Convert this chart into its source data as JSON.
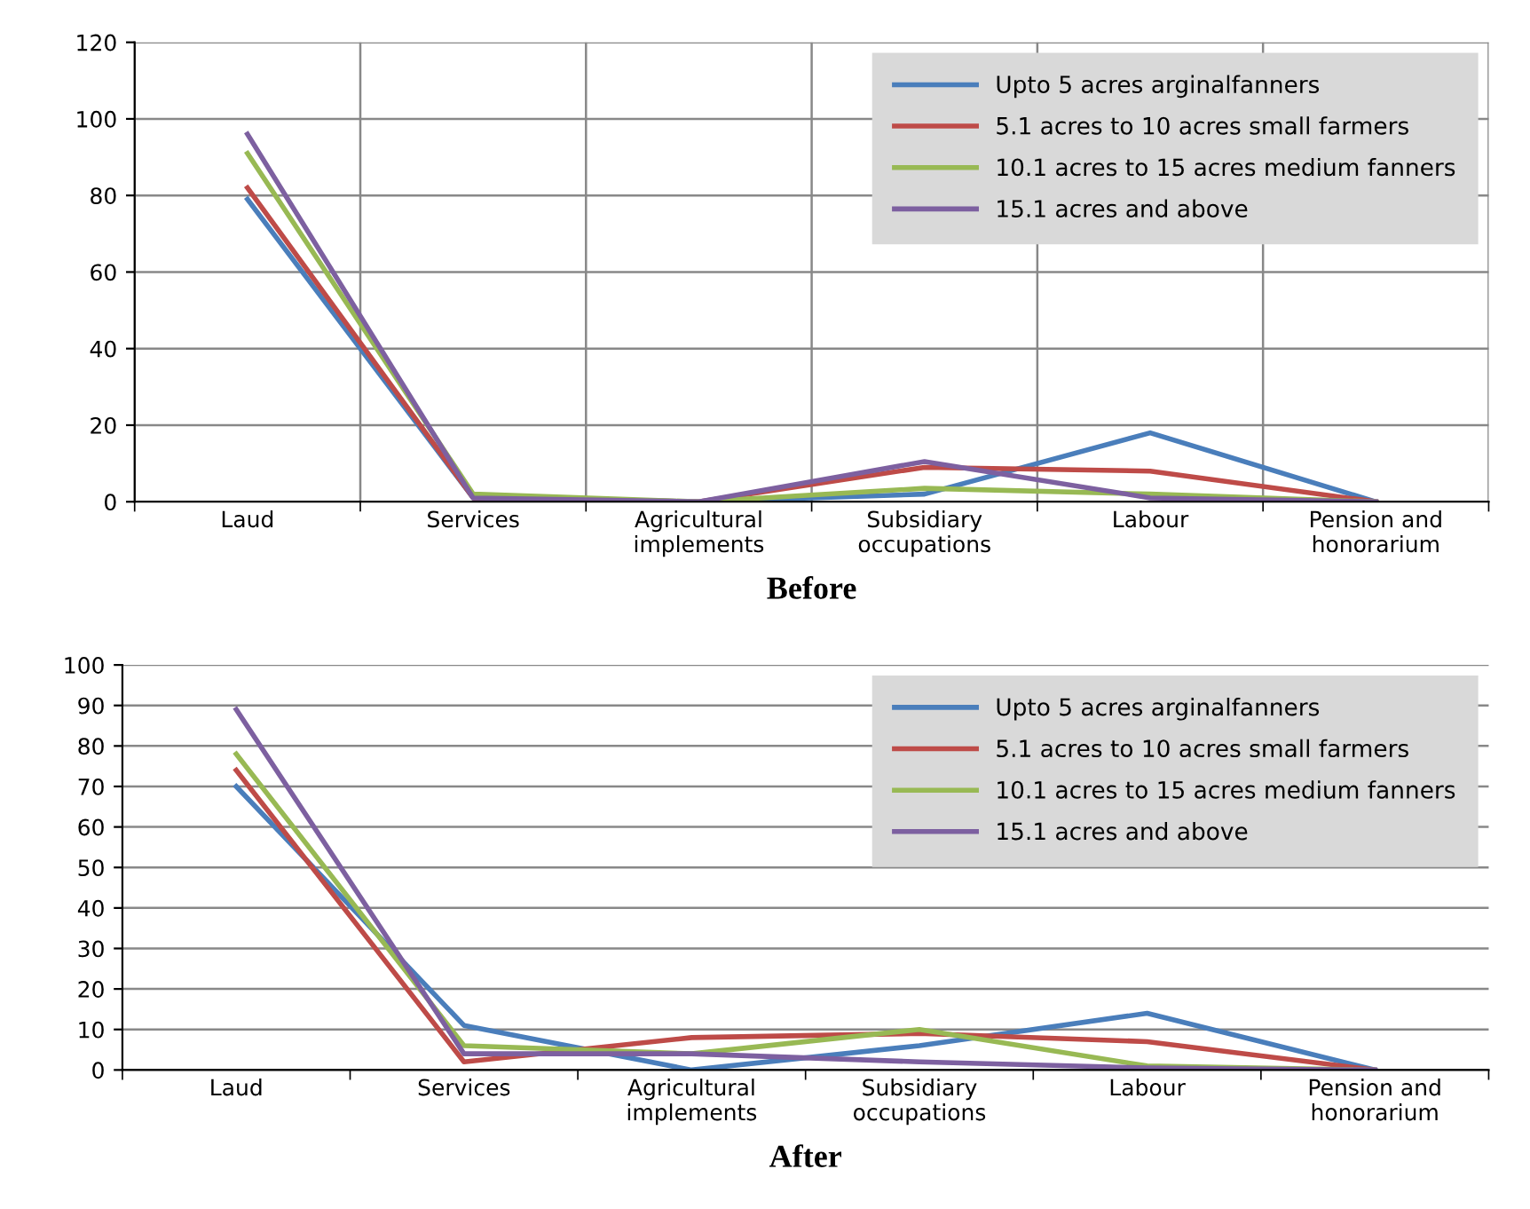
{
  "chart_data": [
    {
      "type": "line",
      "xlabel": "Before",
      "categories": [
        "Laud",
        "Services",
        "Agricultural\nimplements",
        "Subsidiary\noccupations",
        "Labour",
        "Pension and\nhonorarium"
      ],
      "series": [
        {
          "name": "Upto 5 acres arginalfanners",
          "color": "#4a7ebb",
          "values": [
            79,
            1,
            0,
            2,
            18,
            0
          ]
        },
        {
          "name": "5.1 acres to 10 acres small farmers",
          "color": "#be4b48",
          "values": [
            82,
            1,
            0,
            9,
            8,
            0
          ]
        },
        {
          "name": "10.1 acres to 15 acres medium fanners",
          "color": "#98b954",
          "values": [
            91,
            2,
            0,
            3.5,
            2,
            0
          ]
        },
        {
          "name": "15.1 acres and above",
          "color": "#7d60a0",
          "values": [
            96,
            1,
            0,
            10.5,
            1,
            0
          ]
        }
      ],
      "ylim": [
        0,
        120
      ],
      "yticks": [
        0,
        20,
        40,
        60,
        80,
        100,
        120
      ],
      "grid": true,
      "legend": "top right",
      "marker": "none",
      "line_style": "solid"
    },
    {
      "type": "line",
      "xlabel": "After",
      "categories": [
        "Laud",
        "Services",
        "Agricultural\nimplements",
        "Subsidiary\noccupations",
        "Labour",
        "Pension and\nhonorarium"
      ],
      "series": [
        {
          "name": "Upto 5 acres arginalfanners",
          "color": "#4a7ebb",
          "values": [
            70,
            11,
            0,
            6,
            14,
            0
          ]
        },
        {
          "name": "5.1 acres to 10 acres small farmers",
          "color": "#be4b48",
          "values": [
            74,
            2,
            8,
            9,
            7,
            0
          ]
        },
        {
          "name": "10.1 acres to 15 acres medium fanners",
          "color": "#98b954",
          "values": [
            78,
            6,
            4,
            10,
            1,
            0
          ]
        },
        {
          "name": "15.1 acres and above",
          "color": "#7d60a0",
          "values": [
            89,
            4,
            4,
            2,
            0.5,
            0
          ]
        }
      ],
      "ylim": [
        0,
        100
      ],
      "yticks": [
        0,
        10,
        20,
        30,
        40,
        50,
        60,
        70,
        80,
        90,
        100
      ],
      "grid": "y",
      "legend": "top right",
      "marker": "none",
      "line_style": "solid"
    }
  ]
}
